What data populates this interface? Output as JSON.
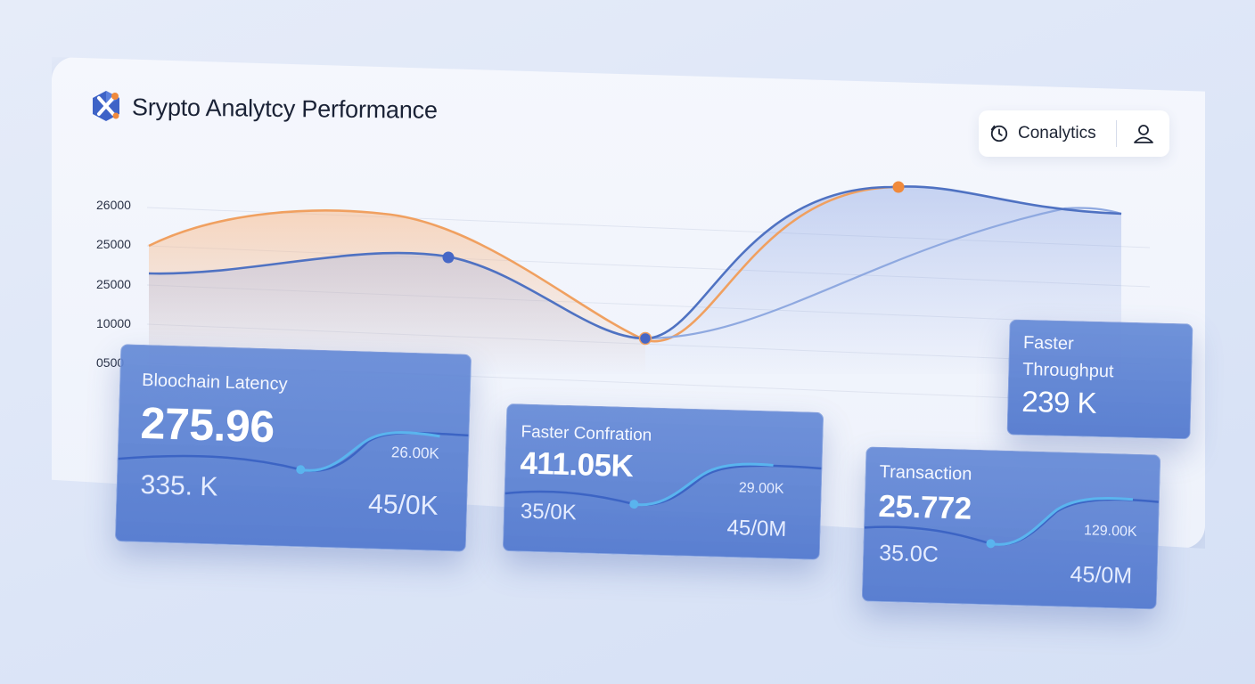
{
  "header": {
    "app_title": "Srypto Analytcy Performance",
    "logo_icon": "crypto-logo",
    "source_button_label": "Conalytics",
    "source_icon": "clock-icon",
    "user_icon": "user-icon"
  },
  "chart_data": {
    "type": "area",
    "y_tick_labels": [
      "26000",
      "25000",
      "25000",
      "10000",
      "0500"
    ],
    "grid": true,
    "series": [
      {
        "color": "#f0a060",
        "fill": true
      },
      {
        "color": "#4f72c2",
        "fill": true
      },
      {
        "color": "#8fa9e0",
        "fill": false
      }
    ]
  },
  "cards": {
    "latency": {
      "label": "Bloochain Latency",
      "value": "275.96",
      "left_sub": "335. K",
      "right_sub": "45/0K",
      "spark_label": "26.00K"
    },
    "confirmation": {
      "label": "Faster Confration",
      "value": "411.05K",
      "left_sub": "35/0K",
      "right_sub": "45/0M",
      "spark_label": "29.00K"
    },
    "throughput": {
      "label_line1": "Faster",
      "label_line2": "Throughput",
      "value": "239 K"
    },
    "transaction": {
      "label": "Transaction",
      "value": "25.772",
      "left_sub": "35.0C",
      "right_sub": "45/0M",
      "spark_label": "129.00K"
    }
  },
  "colors": {
    "accent_blue": "#4f72c2",
    "accent_orange": "#f0a060",
    "card_blue": "#6489d6",
    "spark_cyan": "#5ab4ee"
  }
}
